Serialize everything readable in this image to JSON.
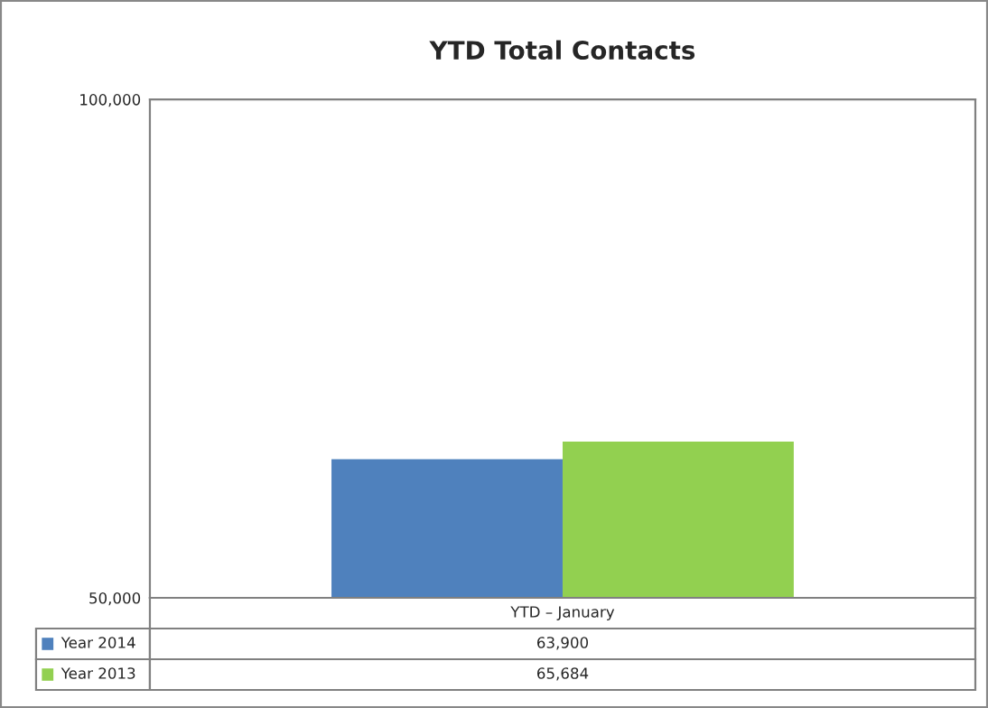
{
  "chart_data": {
    "type": "bar",
    "title": "YTD Total Contacts",
    "categories": [
      "YTD – January"
    ],
    "series": [
      {
        "name": "Year 2014",
        "color": "#4f81bd",
        "values": [
          63900
        ]
      },
      {
        "name": "Year 2013",
        "color": "#92d050",
        "values": [
          65684
        ]
      }
    ],
    "ylim": [
      50000,
      100000
    ],
    "yticks": [
      {
        "value": 50000,
        "label": "50,000"
      },
      {
        "value": 100000,
        "label": "100,000"
      }
    ],
    "value_labels": [
      [
        "63,900"
      ],
      [
        "65,684"
      ]
    ],
    "grid": false,
    "legend": "bottom"
  }
}
